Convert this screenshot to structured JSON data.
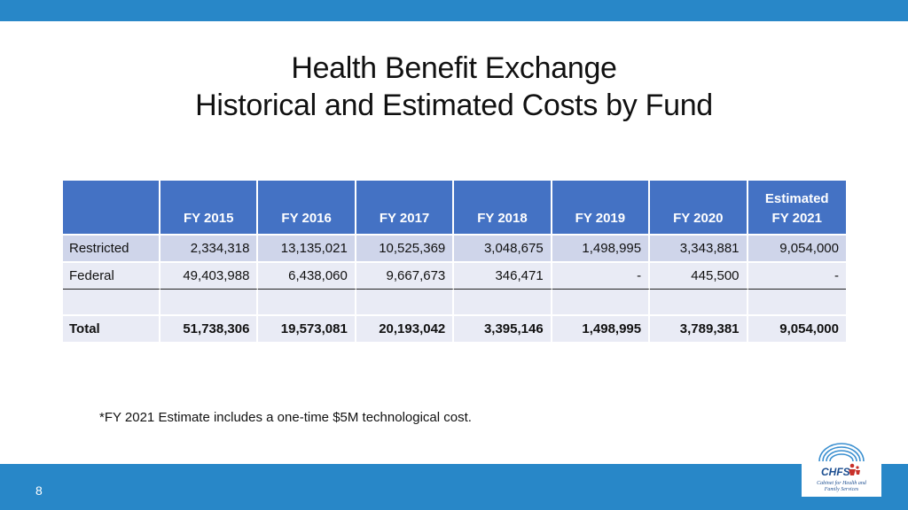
{
  "slide": {
    "title_line1": "Health Benefit Exchange",
    "title_line2": "Historical and Estimated Costs by Fund",
    "page_number": "8",
    "footnote": "*FY 2021 Estimate includes a one-time $5M technological cost."
  },
  "table": {
    "headers": [
      "",
      "FY 2015",
      "FY 2016",
      "FY 2017",
      "FY 2018",
      "FY 2019",
      "FY 2020",
      "Estimated FY 2021"
    ],
    "header_last_line1": "Estimated",
    "header_last_line2": "FY 2021",
    "rows": [
      {
        "label": "Restricted",
        "values": [
          "2,334,318",
          "13,135,021",
          "10,525,369",
          "3,048,675",
          "1,498,995",
          "3,343,881",
          "9,054,000"
        ]
      },
      {
        "label": "Federal",
        "values": [
          "49,403,988",
          "6,438,060",
          "9,667,673",
          "346,471",
          "-",
          "445,500",
          "-"
        ]
      },
      {
        "label": "",
        "values": [
          "",
          "",
          "",
          "",
          "",
          "",
          ""
        ]
      },
      {
        "label": "Total",
        "values": [
          "51,738,306",
          "19,573,081",
          "20,193,042",
          "3,395,146",
          "1,498,995",
          "3,789,381",
          "9,054,000"
        ]
      }
    ]
  },
  "logo": {
    "text": "CHFS",
    "subtitle_line1": "Cabinet for Health and",
    "subtitle_line2": "Family Services"
  },
  "colors": {
    "accent_bar": "#2887c8",
    "table_header": "#4472c4",
    "row_dark": "#cfd5ea",
    "row_light": "#e9ebf5"
  }
}
